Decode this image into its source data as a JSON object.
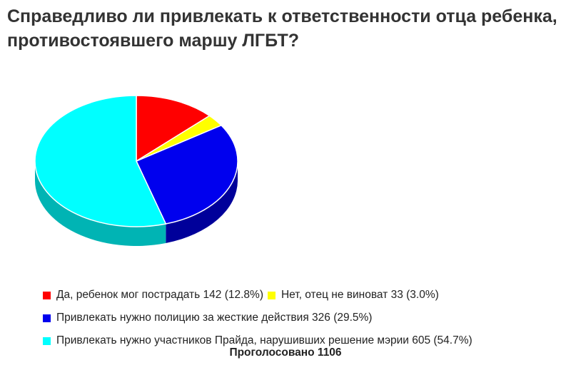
{
  "title": "Справедливо ли привлекать к ответственности отца ребенка, противостоявшего маршу ЛГБТ?",
  "total_label": "Проголосовано 1106",
  "chart_data": {
    "type": "pie",
    "title": "Справедливо ли привлекать к ответственности отца ребенка, противостоявшего маршу ЛГБТ?",
    "total": 1106,
    "slices": [
      {
        "label": "Да, ребенок мог пострадать 142 (12.8%)",
        "value": 142,
        "percent": 12.8,
        "color": "#ff0000"
      },
      {
        "label": "Нет, отец не виноват 33 (3.0%)",
        "value": 33,
        "percent": 3.0,
        "color": "#ffff00"
      },
      {
        "label": "Привлекать нужно полицию за жесткие действия 326 (29.5%)",
        "value": 326,
        "percent": 29.5,
        "color": "#0000ee"
      },
      {
        "label": "Привлекать нужно участников Прайда, нарушивших решение мэрии 605 (54.7%)",
        "value": 605,
        "percent": 54.7,
        "color": "#00ffff"
      }
    ],
    "side_colors": [
      "#a80000",
      "#a8a800",
      "#00009a",
      "#00b4b4"
    ]
  }
}
